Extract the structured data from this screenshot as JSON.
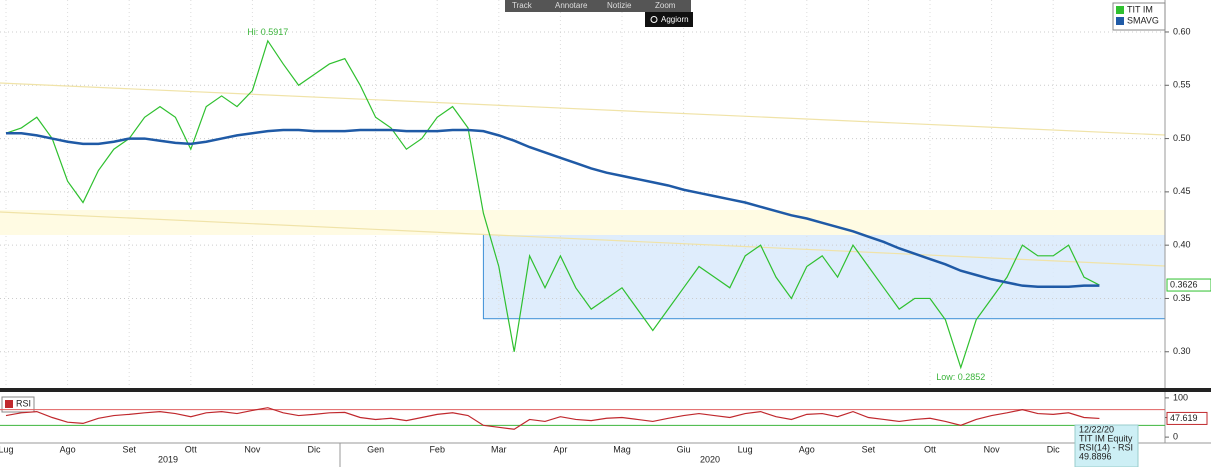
{
  "toolbar": {
    "buttons": [
      "Track",
      "Annotare",
      "Notizie",
      "Zoom"
    ],
    "refresh": "Aggiorn"
  },
  "chart_data": [
    {
      "type": "line",
      "categories": [
        "Lug",
        null,
        null,
        null,
        "Ago",
        null,
        null,
        null,
        "Set",
        null,
        null,
        null,
        "Ott",
        null,
        null,
        null,
        "Nov",
        null,
        null,
        null,
        "Dic",
        null,
        null,
        null,
        "Gen",
        null,
        null,
        null,
        "Feb",
        null,
        null,
        null,
        "Mar",
        null,
        null,
        null,
        "Apr",
        null,
        null,
        null,
        "Mag",
        null,
        null,
        null,
        "Giu",
        null,
        null,
        null,
        "Lug",
        null,
        null,
        null,
        "Ago",
        null,
        null,
        null,
        "Set",
        null,
        null,
        null,
        "Ott",
        null,
        null,
        null,
        "Nov",
        null,
        null,
        null,
        "Dic",
        null,
        null,
        null
      ],
      "years": [
        "2019",
        "2020"
      ],
      "series": [
        {
          "name": "TIT IM",
          "color": "#2fc02f",
          "values": [
            0.505,
            0.51,
            0.52,
            0.5,
            0.46,
            0.44,
            0.47,
            0.49,
            0.5,
            0.52,
            0.53,
            0.52,
            0.49,
            0.53,
            0.54,
            0.53,
            0.545,
            0.5917,
            0.57,
            0.55,
            0.56,
            0.57,
            0.575,
            0.55,
            0.52,
            0.51,
            0.49,
            0.5,
            0.52,
            0.53,
            0.51,
            0.43,
            0.38,
            0.3,
            0.39,
            0.36,
            0.39,
            0.36,
            0.34,
            0.35,
            0.36,
            0.34,
            0.32,
            0.34,
            0.36,
            0.38,
            0.37,
            0.36,
            0.39,
            0.4,
            0.37,
            0.35,
            0.38,
            0.39,
            0.37,
            0.4,
            0.38,
            0.36,
            0.34,
            0.35,
            0.35,
            0.33,
            0.2852,
            0.33,
            0.35,
            0.37,
            0.4,
            0.39,
            0.39,
            0.4,
            0.37,
            0.3626
          ]
        },
        {
          "name": "SMAVG",
          "color": "#1f5aa6",
          "values": [
            0.505,
            0.505,
            0.503,
            0.5,
            0.497,
            0.495,
            0.495,
            0.497,
            0.5,
            0.5,
            0.498,
            0.496,
            0.495,
            0.497,
            0.5,
            0.503,
            0.505,
            0.507,
            0.508,
            0.508,
            0.507,
            0.507,
            0.507,
            0.508,
            0.508,
            0.508,
            0.507,
            0.507,
            0.507,
            0.508,
            0.508,
            0.507,
            0.503,
            0.498,
            0.492,
            0.487,
            0.482,
            0.477,
            0.472,
            0.468,
            0.465,
            0.462,
            0.459,
            0.456,
            0.452,
            0.449,
            0.446,
            0.443,
            0.44,
            0.436,
            0.432,
            0.428,
            0.425,
            0.421,
            0.417,
            0.413,
            0.408,
            0.403,
            0.397,
            0.392,
            0.387,
            0.382,
            0.376,
            0.372,
            0.368,
            0.365,
            0.362,
            0.361,
            0.361,
            0.361,
            0.362,
            0.362
          ]
        }
      ],
      "annotations": [
        {
          "text": "Hi: 0.5917",
          "index": 17
        },
        {
          "text": "Low: 0.2852",
          "index": 62
        }
      ],
      "channel": {
        "top": 0.41,
        "bottom": 0.331,
        "from": 31
      },
      "ylim": [
        0.266,
        0.63
      ],
      "yticks": [
        {
          "value": 0.3,
          "label": "0.30"
        },
        0.35,
        {
          "value": 0.4,
          "label": "0.40"
        },
        0.45,
        {
          "value": 0.5,
          "label": "0.50"
        },
        0.55,
        {
          "value": 0.6,
          "label": "0.60"
        }
      ],
      "grid": true
    },
    {
      "type": "line",
      "series": [
        {
          "name": "RSI",
          "color": "#c0282d",
          "values": [
            55,
            62,
            65,
            50,
            38,
            35,
            48,
            55,
            58,
            62,
            65,
            60,
            52,
            62,
            65,
            60,
            68,
            75,
            62,
            55,
            58,
            62,
            63,
            50,
            45,
            48,
            42,
            50,
            58,
            62,
            55,
            30,
            25,
            20,
            45,
            40,
            52,
            45,
            42,
            48,
            50,
            45,
            40,
            48,
            55,
            60,
            55,
            50,
            60,
            65,
            52,
            45,
            58,
            60,
            52,
            65,
            50,
            45,
            40,
            45,
            48,
            40,
            30,
            45,
            55,
            62,
            70,
            60,
            58,
            62,
            50,
            47.619
          ]
        }
      ],
      "bands": [
        {
          "value": 30,
          "color": "#3cb43c"
        },
        {
          "value": 70,
          "color": "#e06060"
        }
      ],
      "ylim": [
        -15,
        115
      ],
      "yticks": [
        0,
        50,
        100
      ]
    }
  ],
  "tooltip": {
    "lines": [
      "12/22/20",
      "TIT IM Equity",
      "RSI(14) - RSI",
      "49.8896"
    ]
  }
}
